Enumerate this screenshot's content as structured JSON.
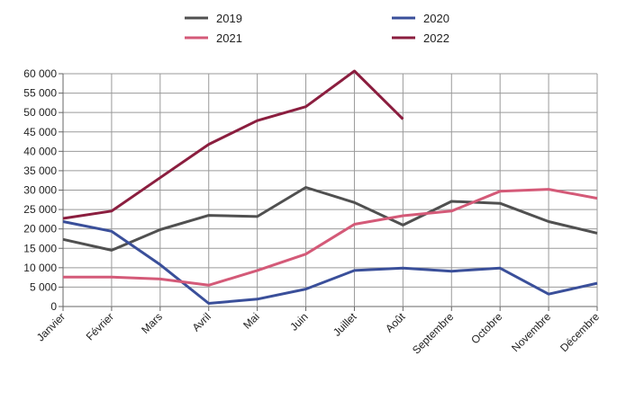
{
  "chart_data": {
    "type": "line",
    "title": "",
    "xlabel": "",
    "ylabel": "",
    "ylim": [
      0,
      60000
    ],
    "yticks": [
      0,
      5000,
      10000,
      15000,
      20000,
      25000,
      30000,
      35000,
      40000,
      45000,
      50000,
      55000,
      60000
    ],
    "ytick_labels": [
      "0",
      "5 000",
      "10 000",
      "15 000",
      "20 000",
      "25 000",
      "30 000",
      "35 000",
      "40 000",
      "45 000",
      "50 000",
      "55 000",
      "60 000"
    ],
    "categories": [
      "Janvier",
      "Février",
      "Mars",
      "Avril",
      "Mai",
      "Juin",
      "Juillet",
      "Août",
      "Septembre",
      "Octobre",
      "Novembre",
      "Décembre"
    ],
    "grid": true,
    "legend_position": "top",
    "series": [
      {
        "name": "2019",
        "color": "#505050",
        "values": [
          17300,
          14500,
          19800,
          23500,
          23200,
          30700,
          26800,
          21000,
          27100,
          26600,
          21900,
          18900
        ]
      },
      {
        "name": "2020",
        "color": "#3a4f9a",
        "values": [
          21900,
          19400,
          10800,
          800,
          1900,
          4500,
          9300,
          9900,
          9100,
          9900,
          3200,
          6000
        ]
      },
      {
        "name": "2021",
        "color": "#d45a78",
        "values": [
          7600,
          7600,
          7100,
          5500,
          9300,
          13500,
          21200,
          23400,
          24600,
          29700,
          30200,
          27900
        ]
      },
      {
        "name": "2022",
        "color": "#8b1e3f",
        "values": [
          22700,
          24600,
          33200,
          41800,
          47900,
          51500,
          60700,
          48300,
          null,
          null,
          null,
          null
        ]
      }
    ]
  }
}
